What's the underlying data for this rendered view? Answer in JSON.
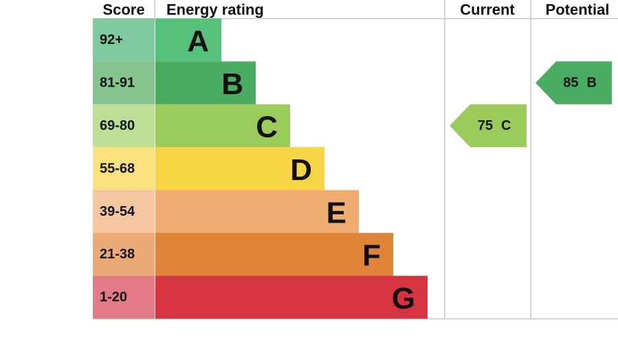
{
  "header": {
    "score": "Score",
    "rating": "Energy rating",
    "current": "Current",
    "potential": "Potential"
  },
  "bands": [
    {
      "score": "92+",
      "rating": "A",
      "color": "#55c17a",
      "score_color": "#80c8a0"
    },
    {
      "score": "81-91",
      "rating": "B",
      "color": "#4aac60",
      "score_color": "#86c48f"
    },
    {
      "score": "69-80",
      "rating": "C",
      "color": "#9bcb5a",
      "score_color": "#bcdf95"
    },
    {
      "score": "55-68",
      "rating": "D",
      "color": "#f6d444",
      "score_color": "#f9e27d"
    },
    {
      "score": "39-54",
      "rating": "E",
      "color": "#f0ad72",
      "score_color": "#f4c7a0"
    },
    {
      "score": "21-38",
      "rating": "F",
      "color": "#e0843a",
      "score_color": "#ebaa76"
    },
    {
      "score": "1-20",
      "rating": "G",
      "color": "#d63441",
      "score_color": "#e27a87"
    }
  ],
  "current": {
    "value": 75,
    "rating": "C"
  },
  "potential": {
    "value": 85,
    "rating": "B"
  }
}
